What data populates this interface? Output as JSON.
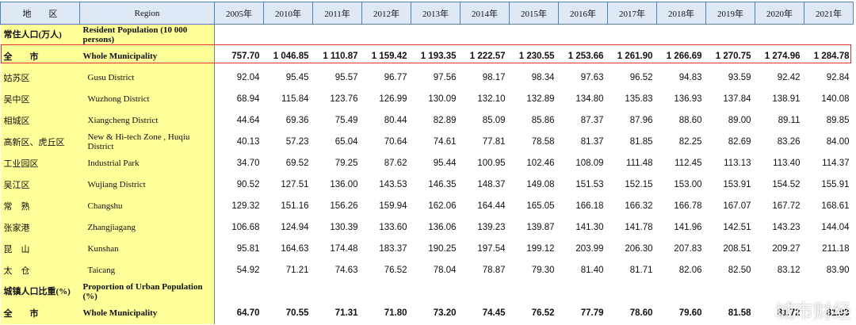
{
  "header": {
    "region_zh": "地　　区",
    "region_en": "Region",
    "years": [
      "2005年",
      "2010年",
      "2011年",
      "2012年",
      "2013年",
      "2014年",
      "2015年",
      "2016年",
      "2017年",
      "2018年",
      "2019年",
      "2020年",
      "2021年"
    ]
  },
  "sections": [
    {
      "title_zh": "常住人口(万人)",
      "title_en": "Resident Population (10 000 persons)",
      "total": {
        "zh": "全　　市",
        "en": "Whole Municipality",
        "values": [
          "757.70",
          "1 046.85",
          "1 110.87",
          "1 159.42",
          "1 193.35",
          "1 222.57",
          "1 230.55",
          "1 253.66",
          "1 261.90",
          "1 266.69",
          "1 270.75",
          "1 274.96",
          "1 284.78"
        ]
      },
      "districts": [
        {
          "zh": "姑苏区",
          "en": "Gusu District",
          "values": [
            "92.04",
            "95.45",
            "95.57",
            "96.77",
            "97.56",
            "98.17",
            "98.34",
            "97.63",
            "96.52",
            "94.83",
            "93.59",
            "92.42",
            "92.84"
          ]
        },
        {
          "zh": "吴中区",
          "en": "Wuzhong District",
          "values": [
            "68.94",
            "115.84",
            "123.76",
            "126.99",
            "130.09",
            "132.10",
            "132.89",
            "134.80",
            "135.83",
            "136.93",
            "137.84",
            "138.91",
            "140.08"
          ]
        },
        {
          "zh": "相城区",
          "en": "Xiangcheng District",
          "values": [
            "44.64",
            "69.36",
            "75.49",
            "80.44",
            "82.89",
            "85.09",
            "85.86",
            "87.37",
            "87.96",
            "88.60",
            "89.00",
            "89.11",
            "89.85"
          ]
        },
        {
          "zh": "高新区、虎丘区",
          "en": "New & Hi-tech Zone , Huqiu District",
          "values": [
            "40.13",
            "57.23",
            "65.04",
            "70.64",
            "74.61",
            "77.81",
            "78.58",
            "81.37",
            "81.85",
            "82.25",
            "82.69",
            "83.26",
            "84.00"
          ]
        },
        {
          "zh": "工业园区",
          "en": "Industrial Park",
          "values": [
            "34.70",
            "69.52",
            "79.25",
            "87.62",
            "95.44",
            "100.95",
            "102.46",
            "108.09",
            "111.48",
            "112.45",
            "113.13",
            "113.40",
            "114.37"
          ]
        },
        {
          "zh": "吴江区",
          "en": "Wujiang District",
          "values": [
            "90.52",
            "127.51",
            "136.00",
            "143.53",
            "146.35",
            "148.37",
            "149.08",
            "151.53",
            "152.15",
            "153.00",
            "153.91",
            "154.52",
            "155.91"
          ]
        },
        {
          "zh": "常　熟",
          "en": "Changshu",
          "values": [
            "129.32",
            "151.16",
            "156.26",
            "159.94",
            "162.06",
            "164.44",
            "165.05",
            "166.18",
            "166.32",
            "166.78",
            "167.07",
            "167.72",
            "168.61"
          ]
        },
        {
          "zh": "张家港",
          "en": "Zhangjiagang",
          "values": [
            "106.68",
            "124.94",
            "130.39",
            "133.60",
            "136.06",
            "139.23",
            "139.87",
            "141.30",
            "141.78",
            "141.96",
            "142.51",
            "143.23",
            "144.04"
          ]
        },
        {
          "zh": "昆　山",
          "en": "Kunshan",
          "values": [
            "95.81",
            "164.63",
            "174.48",
            "183.37",
            "190.25",
            "197.54",
            "199.12",
            "203.99",
            "206.30",
            "207.83",
            "208.51",
            "209.27",
            "211.18"
          ]
        },
        {
          "zh": "太　仓",
          "en": "Taicang",
          "values": [
            "54.92",
            "71.21",
            "74.63",
            "76.52",
            "78.04",
            "78.87",
            "79.30",
            "81.40",
            "81.71",
            "82.06",
            "82.50",
            "83.12",
            "83.90"
          ]
        }
      ]
    },
    {
      "title_zh": "城镇人口比重(%)",
      "title_en": "Proportion of Urban Population (%)",
      "total": {
        "zh": "全　　市",
        "en": "Whole Municipality",
        "values": [
          "64.70",
          "70.55",
          "71.31",
          "71.80",
          "73.20",
          "74.45",
          "76.52",
          "77.79",
          "78.60",
          "79.60",
          "81.58",
          "81.72",
          "81.93"
        ]
      },
      "districts": []
    }
  ],
  "watermark": "城市财经"
}
